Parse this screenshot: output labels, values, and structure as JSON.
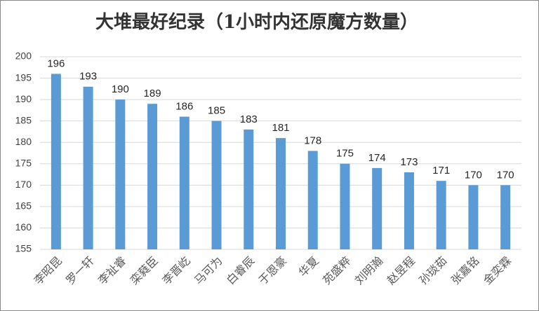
{
  "chart_data": {
    "type": "bar",
    "title": "大堆最好纪录（1小时内还原魔方数量）",
    "categories": [
      "李昭昆",
      "罗一轩",
      "李祉睿",
      "栾蕤臣",
      "李晋屹",
      "马可为",
      "白睿辰",
      "于恩豪",
      "华夏",
      "苑盛粹",
      "刘明瀚",
      "赵昱程",
      "孙琰茹",
      "张嘉铭",
      "金奕霖"
    ],
    "values": [
      196,
      193,
      190,
      189,
      186,
      185,
      183,
      181,
      178,
      175,
      174,
      173,
      171,
      170,
      170
    ],
    "color": "#5b9bd5",
    "ylim": [
      155,
      200
    ],
    "yticks": [
      155,
      160,
      165,
      170,
      175,
      180,
      185,
      190,
      195,
      200
    ],
    "grid": true
  }
}
